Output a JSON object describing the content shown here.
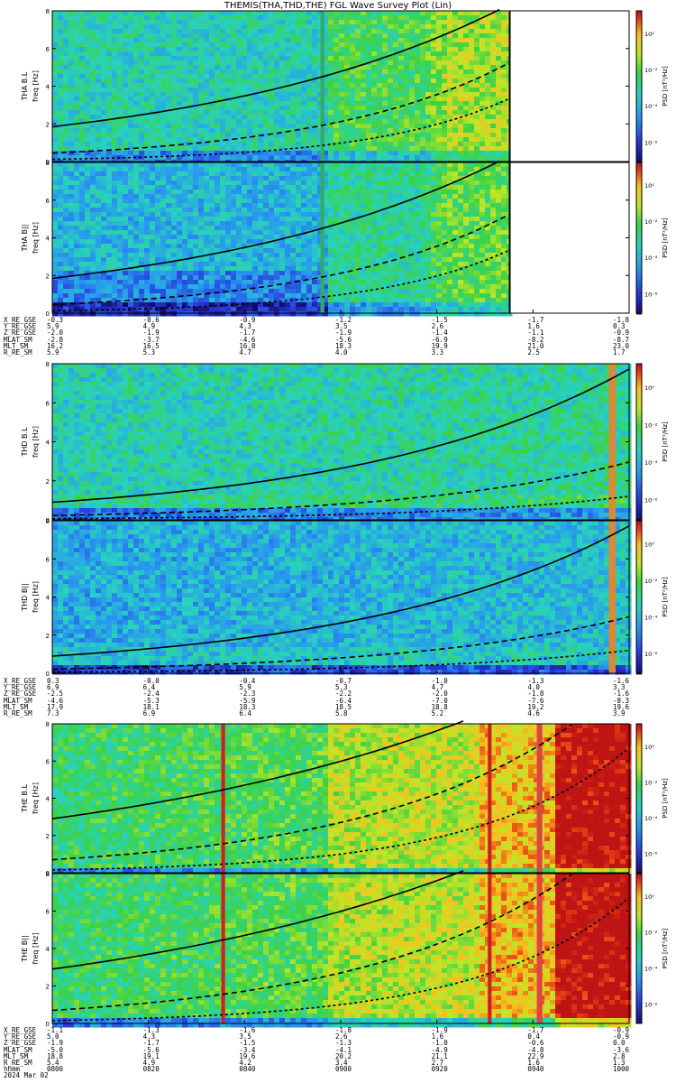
{
  "title": "THEMIS(THA,THD,THE) FGL Wave Survey Plot (Lin)",
  "colors": {
    "bg_low": "#2a3fc8",
    "bg_mid": "#33c8a0",
    "bg_high": "#e8e030",
    "hot": "#d83018",
    "curve": "#000000"
  },
  "chart_data": [
    {
      "type": "heatmap",
      "probe": "THA",
      "panels": [
        {
          "ylabel": "THA B.L\nfreq [Hz]",
          "ylim": [
            0,
            8
          ],
          "yticks": [
            0,
            2,
            4,
            6,
            8
          ]
        },
        {
          "ylabel": "THA B||\nfreq [Hz]",
          "ylim": [
            0,
            8
          ],
          "yticks": [
            0,
            2,
            4,
            6,
            8
          ]
        }
      ],
      "colorbar": {
        "label": "PSD [nT²/Hz]",
        "ticks": [
          "10⁰",
          "10⁻²",
          "10⁻⁴",
          "10⁻⁶"
        ]
      },
      "ephemeris_labels": [
        "X_RE_GSE",
        "Y_RE_GSE",
        "Z_RE_GSE",
        "MLAT_SM",
        "MLT_SM",
        "R_RE_SM"
      ],
      "ephemeris_values": [
        [
          "-0.3",
          "5.9",
          "-2.0",
          "-2.8",
          "16.2",
          "5.9"
        ],
        [
          "-0.6",
          "4.9",
          "-1.9",
          "-3.7",
          "16.5",
          "5.3"
        ],
        [
          "-0.9",
          "4.3",
          "-1.7",
          "-4.6",
          "16.8",
          "4.7"
        ],
        [
          "-1.2",
          "3.5",
          "-1.9",
          "-5.6",
          "18.3",
          "4.0"
        ],
        [
          "-1.5",
          "2.6",
          "-1.4",
          "-6.9",
          "19.9",
          "3.3"
        ],
        [
          "-1.7",
          "1.6",
          "-1.1",
          "-8.2",
          "21.0",
          "2.5"
        ],
        [
          "-1.8",
          "0.3",
          "-0.9",
          "-8.7",
          "23.0",
          "1.7"
        ]
      ]
    },
    {
      "type": "heatmap",
      "probe": "THD",
      "panels": [
        {
          "ylabel": "THD B.L\nfreq [Hz]",
          "ylim": [
            0,
            8
          ],
          "yticks": [
            0,
            2,
            4,
            6,
            8
          ]
        },
        {
          "ylabel": "THD B||\nfreq [Hz]",
          "ylim": [
            0,
            8
          ],
          "yticks": [
            0,
            2,
            4,
            6,
            8
          ]
        }
      ],
      "colorbar": {
        "label": "PSD [nT²/Hz]",
        "ticks": [
          "10⁰",
          "10⁻²",
          "10⁻⁴",
          "10⁻⁶"
        ]
      },
      "ephemeris_labels": [
        "X_RE_GSE",
        "Y_RE_GSE",
        "Z_RE_GSE",
        "MLAT_SM",
        "MLT_SM",
        "R_RE_SM"
      ],
      "ephemeris_values": [
        [
          "0.3",
          "6.9",
          "-2.5",
          "-4.6",
          "17.9",
          "7.3"
        ],
        [
          "-0.0",
          "6.4",
          "-2.4",
          "-5.3",
          "18.1",
          "6.9"
        ],
        [
          "-0.4",
          "5.9",
          "-2.3",
          "-5.9",
          "18.3",
          "6.4"
        ],
        [
          "-0.7",
          "5.3",
          "-2.2",
          "-6.4",
          "18.5",
          "5.8"
        ],
        [
          "-1.0",
          "4.7",
          "-2.0",
          "-7.0",
          "18.8",
          "5.2"
        ],
        [
          "-1.3",
          "4.0",
          "-1.8",
          "-7.6",
          "19.2",
          "4.6"
        ],
        [
          "-1.6",
          "3.3",
          "-1.6",
          "-8.3",
          "19.6",
          "3.9"
        ]
      ]
    },
    {
      "type": "heatmap",
      "probe": "THE",
      "panels": [
        {
          "ylabel": "THE B.L\nfreq [Hz]",
          "ylim": [
            0,
            8
          ],
          "yticks": [
            0,
            2,
            4,
            6,
            8
          ]
        },
        {
          "ylabel": "THE B||\nfreq [Hz]",
          "ylim": [
            0,
            8
          ],
          "yticks": [
            0,
            2,
            4,
            6,
            8
          ]
        }
      ],
      "colorbar": {
        "label": "PSD [nT²/Hz]",
        "ticks": [
          "10⁰",
          "10⁻²",
          "10⁻⁴",
          "10⁻⁶"
        ]
      },
      "ephemeris_labels": [
        "X_RE_GSE",
        "Y_RE_GSE",
        "Z_RE_GSE",
        "MLAT_SM",
        "MLT_SM",
        "R_RE_SM",
        "hhmm",
        "2024 Mar 02"
      ],
      "ephemeris_values": [
        [
          "-1.1",
          "5.0",
          "-1.9",
          "-5.0",
          "18.8",
          "5.4",
          "0800"
        ],
        [
          "-1.3",
          "4.3",
          "-1.7",
          "-5.6",
          "19.1",
          "4.9",
          "0820"
        ],
        [
          "-1.6",
          "3.5",
          "-1.5",
          "-3.4",
          "19.6",
          "4.2",
          "0840"
        ],
        [
          "-1.8",
          "2.6",
          "-1.3",
          "-4.1",
          "20.2",
          "3.4",
          "0900"
        ],
        [
          "-1.9",
          "1.6",
          "-1.0",
          "-4.9",
          "21.1",
          "2.7",
          "0920"
        ],
        [
          "-1.7",
          "0.4",
          "-0.6",
          "-4.8",
          "22.9",
          "1.6",
          "0940"
        ],
        [
          "-0.9",
          "-0.9",
          "0.0",
          "-3.6",
          "2.8",
          "1.3",
          "1000"
        ]
      ]
    }
  ]
}
